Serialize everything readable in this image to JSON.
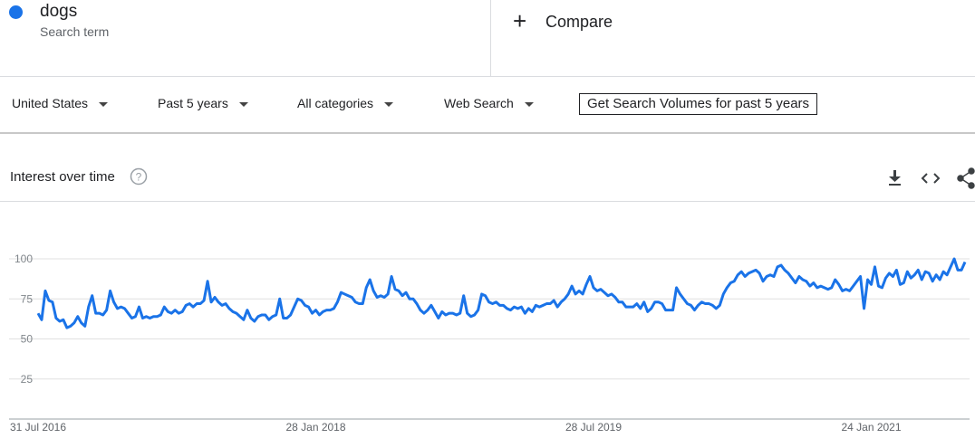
{
  "search_term_label": "Search term",
  "compare": "Compare",
  "filters": [
    "United States",
    "Past 5 years",
    "All categories",
    "Web Search"
  ],
  "button": "Get Search Volumes for past 5 years",
  "chart_data": {
    "type": "line",
    "title": "Interest over time",
    "categories": [
      "31 Jul 2016",
      null,
      null,
      null,
      null,
      null,
      null,
      null,
      null,
      null,
      null,
      null,
      null,
      null,
      null,
      null,
      null,
      null,
      null,
      null,
      null,
      null,
      null,
      null,
      null,
      null,
      null,
      null,
      null,
      null,
      null,
      null,
      null,
      null,
      null,
      null,
      null,
      null,
      null,
      null,
      null,
      null,
      null,
      null,
      null,
      null,
      null,
      null,
      null,
      null,
      null,
      null,
      null,
      null,
      null,
      null,
      null,
      null,
      null,
      null,
      null,
      null,
      null,
      null,
      null,
      null,
      null,
      null,
      null,
      null,
      null,
      null,
      null,
      null,
      null,
      null,
      null,
      "28 Jan 2018",
      null,
      null,
      null,
      null,
      null,
      null,
      null,
      null,
      null,
      null,
      null,
      null,
      null,
      null,
      null,
      null,
      null,
      null,
      null,
      null,
      null,
      null,
      null,
      null,
      null,
      null,
      null,
      null,
      null,
      null,
      null,
      null,
      null,
      null,
      null,
      null,
      null,
      null,
      null,
      null,
      null,
      null,
      null,
      null,
      null,
      null,
      null,
      null,
      null,
      null,
      null,
      null,
      null,
      null,
      null,
      null,
      null,
      null,
      null,
      null,
      null,
      null,
      null,
      null,
      null,
      null,
      null,
      null,
      null,
      null,
      null,
      null,
      null,
      null,
      null,
      null,
      "28 Jul 2019",
      null,
      null,
      null,
      null,
      null,
      null,
      null,
      null,
      null,
      null,
      null,
      null,
      null,
      null,
      null,
      null,
      null,
      null,
      null,
      null,
      null,
      null,
      null,
      null,
      null,
      null,
      null,
      null,
      null,
      null,
      null,
      null,
      null,
      null,
      null,
      null,
      null,
      null,
      null,
      null,
      null,
      null,
      null,
      null,
      null,
      null,
      null,
      null,
      null,
      null,
      null,
      null,
      null,
      null,
      null,
      null,
      null,
      null,
      null,
      null,
      null,
      null,
      null,
      null,
      null,
      null,
      null,
      null,
      null,
      null,
      null,
      null,
      null,
      null,
      null,
      null,
      "24 Jan 2021",
      null,
      null,
      null,
      null,
      null,
      null,
      null,
      null,
      null,
      null,
      null,
      null,
      null,
      null,
      null,
      null,
      null,
      null,
      null,
      null,
      null,
      null,
      null,
      null,
      null,
      null
    ],
    "series": [
      {
        "name": "dogs",
        "color": "#1a73e8",
        "values": [
          66,
          62,
          80,
          74,
          73,
          63,
          61,
          62,
          57,
          58,
          60,
          64,
          60,
          58,
          70,
          77,
          66,
          66,
          65,
          68,
          80,
          73,
          69,
          70,
          69,
          66,
          63,
          64,
          70,
          63,
          64,
          63,
          64,
          64,
          65,
          70,
          67,
          66,
          68,
          66,
          67,
          71,
          72,
          70,
          72,
          72,
          74,
          86,
          73,
          76,
          73,
          71,
          72,
          69,
          67,
          66,
          64,
          62,
          68,
          63,
          61,
          64,
          65,
          65,
          62,
          64,
          65,
          75,
          63,
          63,
          65,
          70,
          75,
          74,
          71,
          70,
          66,
          68,
          65,
          67,
          68,
          68,
          69,
          73,
          79,
          78,
          77,
          76,
          73,
          72,
          72,
          82,
          87,
          80,
          76,
          77,
          76,
          78,
          89,
          81,
          80,
          77,
          79,
          75,
          75,
          72,
          68,
          66,
          68,
          71,
          67,
          63,
          67,
          65,
          66,
          66,
          65,
          66,
          77,
          66,
          64,
          65,
          68,
          78,
          77,
          73,
          72,
          73,
          71,
          71,
          69,
          68,
          70,
          69,
          70,
          66,
          69,
          67,
          71,
          70,
          71,
          72,
          72,
          74,
          70,
          73,
          75,
          78,
          83,
          78,
          80,
          78,
          84,
          89,
          82,
          80,
          81,
          79,
          77,
          78,
          76,
          73,
          73,
          70,
          70,
          70,
          72,
          69,
          73,
          67,
          69,
          73,
          73,
          72,
          68,
          68,
          68,
          82,
          78,
          75,
          72,
          71,
          68,
          71,
          73,
          72,
          72,
          71,
          69,
          71,
          78,
          82,
          85,
          86,
          90,
          92,
          89,
          91,
          92,
          93,
          91,
          86,
          89,
          90,
          89,
          95,
          96,
          93,
          91,
          88,
          85,
          89,
          87,
          86,
          83,
          85,
          82,
          83,
          82,
          81,
          82,
          87,
          84,
          80,
          81,
          80,
          83,
          86,
          89,
          69,
          87,
          84,
          95,
          83,
          82,
          88,
          91,
          89,
          93,
          84,
          85,
          92,
          88,
          90,
          93,
          87,
          92,
          91,
          86,
          90,
          87,
          92,
          90,
          95,
          100,
          93,
          93,
          98
        ]
      }
    ],
    "ylim": [
      0,
      100
    ],
    "yticks": [
      25,
      50,
      75,
      100
    ],
    "grid": true
  }
}
